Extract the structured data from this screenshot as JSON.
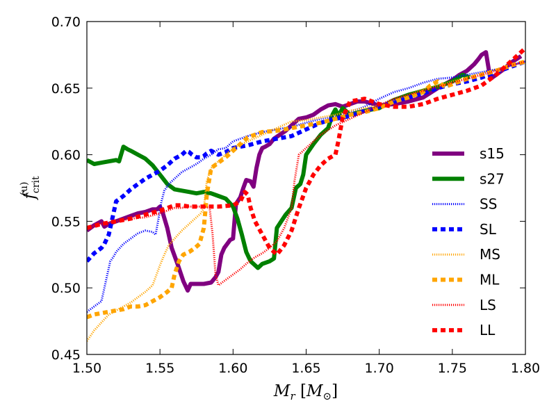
{
  "chart_data": {
    "type": "line",
    "title": "",
    "xlabel": "M_r [M_⊙]",
    "ylabel": "f_crit^(u)",
    "xlim": [
      1.5,
      1.8
    ],
    "ylim": [
      0.45,
      0.7
    ],
    "x_ticks": [
      "1.50",
      "1.55",
      "1.60",
      "1.65",
      "1.70",
      "1.75",
      "1.80"
    ],
    "y_ticks": [
      "0.45",
      "0.50",
      "0.55",
      "0.60",
      "0.65",
      "0.70"
    ],
    "grid": false,
    "legend_position": "right",
    "series": [
      {
        "name": "s15",
        "color": "#800080",
        "style": "solid",
        "width": 6,
        "x": [
          1.5,
          1.505,
          1.51,
          1.512,
          1.515,
          1.52,
          1.525,
          1.53,
          1.535,
          1.54,
          1.545,
          1.548,
          1.55,
          1.552,
          1.555,
          1.558,
          1.562,
          1.566,
          1.569,
          1.571,
          1.574,
          1.58,
          1.585,
          1.588,
          1.59,
          1.592,
          1.594,
          1.596,
          1.598,
          1.6,
          1.602,
          1.605,
          1.607,
          1.609,
          1.612,
          1.614,
          1.616,
          1.618,
          1.62,
          1.622,
          1.625,
          1.628,
          1.632,
          1.636,
          1.64,
          1.645,
          1.65,
          1.655,
          1.66,
          1.665,
          1.67,
          1.675,
          1.68,
          1.685,
          1.69,
          1.7,
          1.71,
          1.72,
          1.73,
          1.74,
          1.75,
          1.755,
          1.76,
          1.765,
          1.768,
          1.77,
          1.773,
          1.776,
          1.78,
          1.785,
          1.79,
          1.797
        ],
        "y": [
          0.543,
          0.547,
          0.55,
          0.546,
          0.548,
          0.55,
          0.552,
          0.554,
          0.556,
          0.557,
          0.559,
          0.559,
          0.561,
          0.556,
          0.545,
          0.53,
          0.518,
          0.505,
          0.498,
          0.503,
          0.503,
          0.503,
          0.504,
          0.508,
          0.512,
          0.525,
          0.53,
          0.533,
          0.536,
          0.537,
          0.563,
          0.568,
          0.575,
          0.581,
          0.58,
          0.576,
          0.59,
          0.6,
          0.605,
          0.606,
          0.608,
          0.612,
          0.615,
          0.618,
          0.622,
          0.627,
          0.628,
          0.63,
          0.634,
          0.637,
          0.638,
          0.636,
          0.638,
          0.64,
          0.64,
          0.637,
          0.638,
          0.64,
          0.643,
          0.65,
          0.656,
          0.66,
          0.663,
          0.668,
          0.672,
          0.675,
          0.677,
          0.657,
          0.66,
          0.664,
          0.669,
          0.674
        ]
      },
      {
        "name": "s27",
        "color": "#008000",
        "style": "solid",
        "width": 6,
        "x": [
          1.5,
          1.505,
          1.51,
          1.515,
          1.52,
          1.522,
          1.525,
          1.528,
          1.53,
          1.535,
          1.54,
          1.545,
          1.55,
          1.555,
          1.56,
          1.565,
          1.57,
          1.575,
          1.58,
          1.585,
          1.59,
          1.595,
          1.6,
          1.603,
          1.606,
          1.609,
          1.612,
          1.614,
          1.617,
          1.62,
          1.625,
          1.628,
          1.63,
          1.633,
          1.636,
          1.64,
          1.643,
          1.646,
          1.648,
          1.65,
          1.655,
          1.66,
          1.665,
          1.668,
          1.67,
          1.672,
          1.675,
          1.68,
          1.69,
          1.7,
          1.71,
          1.72,
          1.73,
          1.74,
          1.75,
          1.757,
          1.762
        ],
        "y": [
          0.596,
          0.593,
          0.594,
          0.595,
          0.596,
          0.595,
          0.606,
          0.604,
          0.603,
          0.6,
          0.597,
          0.592,
          0.585,
          0.578,
          0.574,
          0.573,
          0.572,
          0.571,
          0.572,
          0.571,
          0.569,
          0.567,
          0.561,
          0.552,
          0.54,
          0.527,
          0.52,
          0.518,
          0.515,
          0.518,
          0.52,
          0.522,
          0.545,
          0.55,
          0.555,
          0.56,
          0.575,
          0.578,
          0.585,
          0.6,
          0.608,
          0.615,
          0.62,
          0.63,
          0.634,
          0.629,
          0.635,
          0.63,
          0.633,
          0.635,
          0.641,
          0.645,
          0.648,
          0.651,
          0.655,
          0.66,
          0.658
        ]
      },
      {
        "name": "SS",
        "color": "#0000ff",
        "style": "dotted",
        "width": 3,
        "x": [
          1.5,
          1.505,
          1.51,
          1.512,
          1.514,
          1.516,
          1.518,
          1.52,
          1.525,
          1.53,
          1.535,
          1.54,
          1.545,
          1.547,
          1.549,
          1.551,
          1.553,
          1.556,
          1.56,
          1.565,
          1.57,
          1.575,
          1.58,
          1.585,
          1.59,
          1.595,
          1.6,
          1.61,
          1.62,
          1.63,
          1.64,
          1.65,
          1.66,
          1.67,
          1.68,
          1.69,
          1.7,
          1.71,
          1.72,
          1.73,
          1.74,
          1.75,
          1.76,
          1.77,
          1.78,
          1.79,
          1.8
        ],
        "y": [
          0.482,
          0.486,
          0.49,
          0.5,
          0.51,
          0.52,
          0.523,
          0.527,
          0.533,
          0.537,
          0.541,
          0.543,
          0.542,
          0.54,
          0.552,
          0.565,
          0.573,
          0.578,
          0.582,
          0.587,
          0.59,
          0.593,
          0.597,
          0.6,
          0.604,
          0.605,
          0.61,
          0.614,
          0.617,
          0.619,
          0.621,
          0.624,
          0.627,
          0.629,
          0.632,
          0.636,
          0.642,
          0.647,
          0.65,
          0.654,
          0.657,
          0.658,
          0.66,
          0.662,
          0.664,
          0.667,
          0.67
        ]
      },
      {
        "name": "SL",
        "color": "#0000ff",
        "style": "dashed",
        "width": 6,
        "x": [
          1.5,
          1.505,
          1.51,
          1.512,
          1.515,
          1.518,
          1.52,
          1.525,
          1.53,
          1.54,
          1.55,
          1.555,
          1.56,
          1.565,
          1.568,
          1.57,
          1.572,
          1.575,
          1.578,
          1.58,
          1.582,
          1.585,
          1.59,
          1.595,
          1.6,
          1.61,
          1.62,
          1.63,
          1.64,
          1.65,
          1.66,
          1.67,
          1.68,
          1.69,
          1.7,
          1.71,
          1.72,
          1.73,
          1.74,
          1.75,
          1.76,
          1.77,
          1.78,
          1.79,
          1.8
        ],
        "y": [
          0.52,
          0.526,
          0.53,
          0.533,
          0.54,
          0.555,
          0.565,
          0.569,
          0.574,
          0.582,
          0.588,
          0.592,
          0.597,
          0.6,
          0.603,
          0.602,
          0.6,
          0.598,
          0.598,
          0.599,
          0.601,
          0.603,
          0.6,
          0.602,
          0.605,
          0.607,
          0.61,
          0.612,
          0.614,
          0.619,
          0.624,
          0.627,
          0.629,
          0.633,
          0.636,
          0.64,
          0.643,
          0.646,
          0.65,
          0.653,
          0.655,
          0.658,
          0.662,
          0.666,
          0.67
        ]
      },
      {
        "name": "MS",
        "color": "#ffa500",
        "style": "dotted",
        "width": 3,
        "x": [
          1.5,
          1.505,
          1.51,
          1.515,
          1.52,
          1.525,
          1.53,
          1.535,
          1.54,
          1.545,
          1.55,
          1.553,
          1.556,
          1.56,
          1.565,
          1.57,
          1.575,
          1.578,
          1.58,
          1.582,
          1.585,
          1.59,
          1.595,
          1.6,
          1.61,
          1.62,
          1.63,
          1.64,
          1.65,
          1.66,
          1.67,
          1.68,
          1.69,
          1.7,
          1.71,
          1.72,
          1.73,
          1.74,
          1.75,
          1.76,
          1.77,
          1.78,
          1.79,
          1.8
        ],
        "y": [
          0.46,
          0.468,
          0.474,
          0.48,
          0.483,
          0.486,
          0.489,
          0.493,
          0.497,
          0.502,
          0.517,
          0.525,
          0.532,
          0.537,
          0.543,
          0.548,
          0.553,
          0.556,
          0.56,
          0.58,
          0.59,
          0.595,
          0.6,
          0.605,
          0.61,
          0.615,
          0.62,
          0.625,
          0.626,
          0.628,
          0.63,
          0.633,
          0.635,
          0.637,
          0.641,
          0.645,
          0.649,
          0.652,
          0.655,
          0.658,
          0.661,
          0.664,
          0.667,
          0.67
        ]
      },
      {
        "name": "ML",
        "color": "#ffa500",
        "style": "dashed",
        "width": 6,
        "x": [
          1.5,
          1.505,
          1.51,
          1.515,
          1.52,
          1.525,
          1.53,
          1.535,
          1.54,
          1.545,
          1.55,
          1.555,
          1.558,
          1.56,
          1.563,
          1.566,
          1.57,
          1.574,
          1.577,
          1.58,
          1.582,
          1.585,
          1.59,
          1.595,
          1.6,
          1.605,
          1.61,
          1.62,
          1.63,
          1.64,
          1.65,
          1.66,
          1.67,
          1.68,
          1.69,
          1.7,
          1.71,
          1.72,
          1.73,
          1.735,
          1.74,
          1.745,
          1.75,
          1.76,
          1.77,
          1.78,
          1.79,
          1.8
        ],
        "y": [
          0.478,
          0.48,
          0.481,
          0.482,
          0.483,
          0.484,
          0.486,
          0.486,
          0.487,
          0.49,
          0.493,
          0.497,
          0.5,
          0.51,
          0.52,
          0.525,
          0.527,
          0.53,
          0.533,
          0.545,
          0.57,
          0.59,
          0.594,
          0.598,
          0.603,
          0.608,
          0.613,
          0.617,
          0.618,
          0.62,
          0.622,
          0.624,
          0.627,
          0.63,
          0.632,
          0.635,
          0.64,
          0.643,
          0.647,
          0.652,
          0.655,
          0.651,
          0.653,
          0.657,
          0.66,
          0.663,
          0.667,
          0.67
        ]
      },
      {
        "name": "LS",
        "color": "#ff0000",
        "style": "dotted",
        "width": 3,
        "x": [
          1.5,
          1.51,
          1.52,
          1.53,
          1.54,
          1.55,
          1.56,
          1.565,
          1.57,
          1.575,
          1.58,
          1.584,
          1.586,
          1.588,
          1.59,
          1.595,
          1.6,
          1.605,
          1.61,
          1.615,
          1.62,
          1.625,
          1.63,
          1.635,
          1.64,
          1.642,
          1.645,
          1.65,
          1.655,
          1.66,
          1.67,
          1.68,
          1.69,
          1.7,
          1.71,
          1.72,
          1.73,
          1.74,
          1.75,
          1.76,
          1.77,
          1.78,
          1.79,
          1.8
        ],
        "y": [
          0.545,
          0.548,
          0.55,
          0.552,
          0.553,
          0.556,
          0.56,
          0.56,
          0.561,
          0.561,
          0.561,
          0.56,
          0.54,
          0.51,
          0.502,
          0.506,
          0.51,
          0.514,
          0.519,
          0.523,
          0.526,
          0.53,
          0.535,
          0.545,
          0.56,
          0.58,
          0.6,
          0.605,
          0.61,
          0.615,
          0.622,
          0.627,
          0.632,
          0.637,
          0.642,
          0.645,
          0.648,
          0.651,
          0.654,
          0.657,
          0.66,
          0.663,
          0.667,
          0.67
        ]
      },
      {
        "name": "LL",
        "color": "#ff0000",
        "style": "dashed",
        "width": 6,
        "x": [
          1.5,
          1.51,
          1.52,
          1.53,
          1.54,
          1.55,
          1.56,
          1.565,
          1.57,
          1.575,
          1.58,
          1.59,
          1.6,
          1.605,
          1.608,
          1.61,
          1.612,
          1.615,
          1.62,
          1.625,
          1.63,
          1.635,
          1.64,
          1.645,
          1.65,
          1.655,
          1.66,
          1.665,
          1.67,
          1.672,
          1.675,
          1.68,
          1.69,
          1.7,
          1.71,
          1.72,
          1.73,
          1.74,
          1.75,
          1.76,
          1.77,
          1.78,
          1.79,
          1.8
        ],
        "y": [
          0.545,
          0.548,
          0.55,
          0.552,
          0.555,
          0.558,
          0.562,
          0.562,
          0.561,
          0.561,
          0.561,
          0.561,
          0.562,
          0.565,
          0.572,
          0.57,
          0.56,
          0.55,
          0.54,
          0.53,
          0.525,
          0.532,
          0.543,
          0.56,
          0.575,
          0.585,
          0.592,
          0.597,
          0.6,
          0.61,
          0.628,
          0.64,
          0.642,
          0.638,
          0.636,
          0.636,
          0.638,
          0.642,
          0.645,
          0.648,
          0.652,
          0.66,
          0.67,
          0.68
        ]
      }
    ]
  }
}
